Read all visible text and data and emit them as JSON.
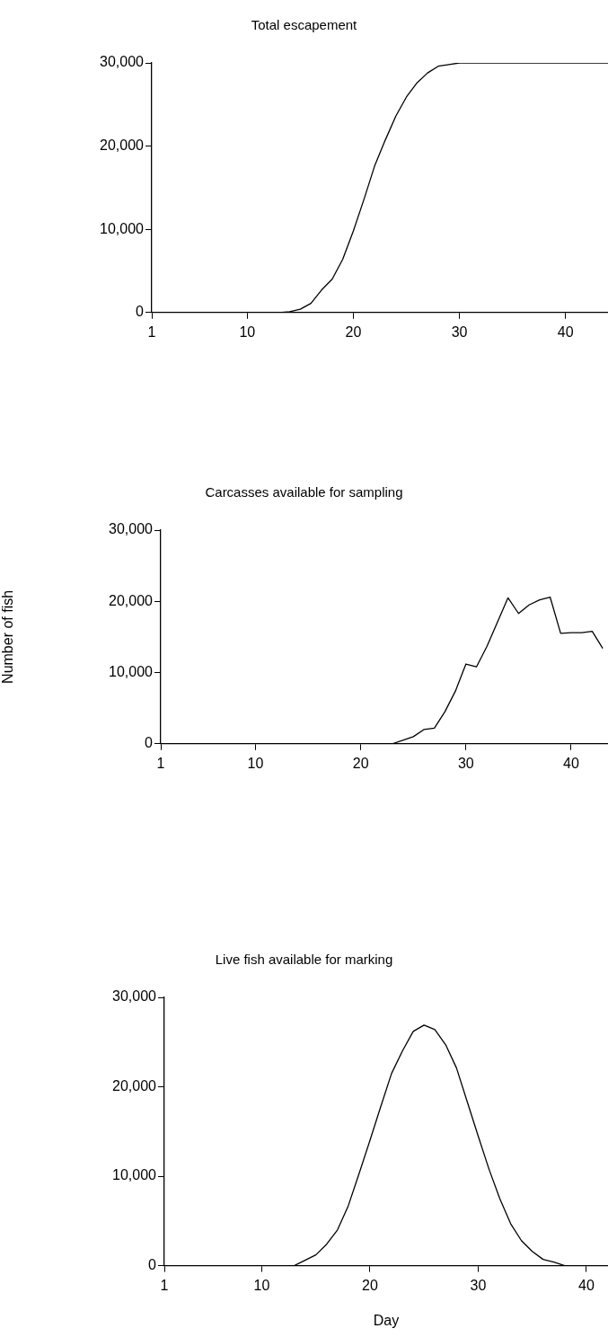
{
  "chart_data": [
    {
      "type": "line",
      "title": "Total escapement",
      "x": [
        1,
        2,
        3,
        4,
        5,
        6,
        7,
        8,
        9,
        10,
        11,
        12,
        13,
        14,
        15,
        16,
        17,
        18,
        19,
        20,
        21,
        22,
        23,
        24,
        25,
        26,
        27,
        28,
        29,
        30,
        31,
        32,
        33,
        34,
        35,
        36,
        37,
        38,
        39,
        40,
        41,
        42,
        43,
        44
      ],
      "series": [
        {
          "color": "#000000",
          "values": [
            0,
            0,
            0,
            0,
            0,
            0,
            0,
            0,
            0,
            0,
            0,
            0,
            0,
            100,
            400,
            1100,
            2700,
            4000,
            6400,
            9800,
            13600,
            17600,
            20700,
            23600,
            25900,
            27600,
            28800,
            29600,
            29800,
            30000,
            30000,
            30000,
            30000,
            30000,
            30000,
            30000,
            30000,
            30000,
            30000,
            30000,
            30000,
            30000,
            30000,
            30000
          ]
        }
      ],
      "xlim": [
        1,
        44
      ],
      "xticks": [
        1,
        10,
        20,
        30,
        40
      ],
      "ylim": [
        0,
        30000
      ],
      "yticks": [
        {
          "value": 0,
          "label": "0"
        },
        {
          "value": 10000,
          "label": "10,000"
        },
        {
          "value": 20000,
          "label": "20,000"
        },
        {
          "value": 30000,
          "label": "30,000"
        }
      ],
      "grid": false,
      "legend": false,
      "marker": "none"
    },
    {
      "type": "line",
      "title": "Carcasses available for sampling",
      "ylabel": "Number of fish",
      "x": [
        1,
        2,
        3,
        4,
        5,
        6,
        7,
        8,
        9,
        10,
        11,
        12,
        13,
        14,
        15,
        16,
        17,
        18,
        19,
        20,
        21,
        22,
        23,
        24,
        25,
        26,
        27,
        28,
        29,
        30,
        31,
        32,
        33,
        34,
        35,
        36,
        37,
        38,
        39,
        40,
        41,
        42,
        43
      ],
      "series": [
        {
          "color": "#000000",
          "values": [
            0,
            0,
            0,
            0,
            0,
            0,
            0,
            0,
            0,
            0,
            0,
            0,
            0,
            0,
            0,
            0,
            0,
            0,
            0,
            0,
            0,
            0,
            0,
            500,
            1000,
            2000,
            2200,
            4500,
            7400,
            11200,
            10800,
            13700,
            17100,
            20500,
            18300,
            19500,
            20200,
            20600,
            15500,
            15600,
            15600,
            15800,
            13400
          ]
        }
      ],
      "xlim": [
        1,
        43.5
      ],
      "xticks": [
        1,
        10,
        20,
        30,
        40
      ],
      "ylim": [
        0,
        30000
      ],
      "yticks": [
        {
          "value": 0,
          "label": "0"
        },
        {
          "value": 10000,
          "label": "10,000"
        },
        {
          "value": 20000,
          "label": "20,000"
        },
        {
          "value": 30000,
          "label": "30,000"
        }
      ],
      "grid": false,
      "legend": false,
      "marker": "none"
    },
    {
      "type": "line",
      "title": "Live fish available for marking",
      "xlabel": "Day",
      "x": [
        1,
        2,
        3,
        4,
        5,
        6,
        7,
        8,
        9,
        10,
        11,
        12,
        13,
        14,
        15,
        16,
        17,
        18,
        19,
        20,
        21,
        22,
        23,
        24,
        25,
        26,
        27,
        28,
        29,
        30,
        31,
        32,
        33,
        34,
        35,
        36,
        37,
        38,
        39,
        40,
        41,
        42
      ],
      "series": [
        {
          "color": "#000000",
          "values": [
            0,
            0,
            0,
            0,
            0,
            0,
            0,
            0,
            0,
            0,
            0,
            0,
            0,
            600,
            1200,
            2400,
            4000,
            6700,
            10300,
            14000,
            17800,
            21500,
            24000,
            26200,
            26900,
            26400,
            24700,
            22100,
            18300,
            14500,
            10800,
            7500,
            4700,
            2800,
            1600,
            700,
            400,
            0,
            0,
            0,
            0,
            0
          ]
        }
      ],
      "xlim": [
        1,
        42
      ],
      "xticks": [
        1,
        10,
        20,
        30,
        40
      ],
      "ylim": [
        0,
        30000
      ],
      "yticks": [
        {
          "value": 0,
          "label": "0"
        },
        {
          "value": 10000,
          "label": "10,000"
        },
        {
          "value": 20000,
          "label": "20,000"
        },
        {
          "value": 30000,
          "label": "30,000"
        }
      ],
      "grid": false,
      "legend": false,
      "marker": "none"
    }
  ]
}
